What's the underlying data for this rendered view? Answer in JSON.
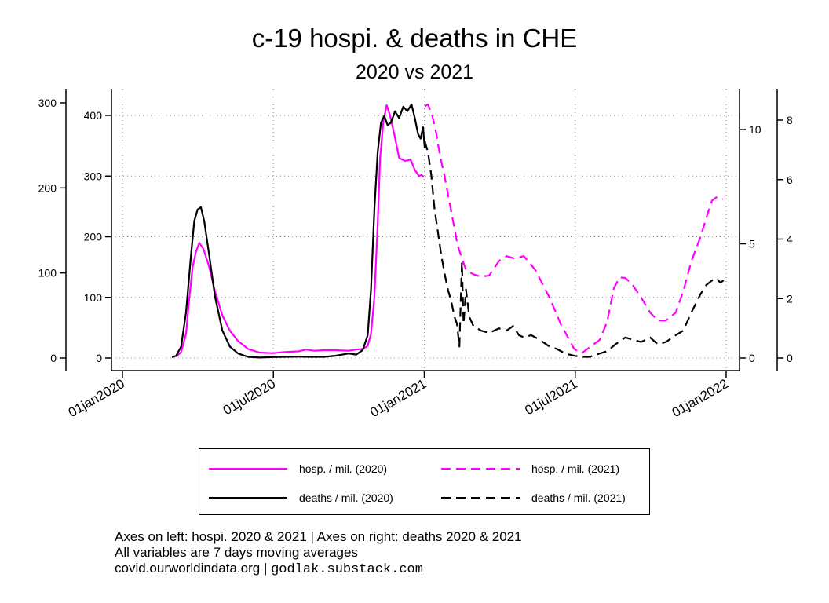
{
  "chart_data": {
    "type": "line",
    "title": "c-19 hospi. & deaths in CHE",
    "subtitle": "2020 vs 2021",
    "x_ticks": [
      "01jan2020",
      "01jul2020",
      "01jan2021",
      "01jul2021",
      "01jan2022"
    ],
    "axes": {
      "left_outer": {
        "ticks": [
          0,
          100,
          200,
          300
        ],
        "ylim": [
          0,
          320
        ]
      },
      "left_inner": {
        "ticks": [
          0,
          100,
          200,
          300,
          400
        ],
        "ylim": [
          0,
          430
        ]
      },
      "right_inner": {
        "ticks": [
          0,
          5,
          10
        ],
        "ylim": [
          0,
          11.4
        ]
      },
      "right_outer": {
        "ticks": [
          0,
          2,
          4,
          6,
          8
        ],
        "ylim": [
          0,
          8.8
        ]
      }
    },
    "grid": true,
    "legend_position": "bottom",
    "series": [
      {
        "name": "hosp. / mil. (2020)",
        "color": "#ff00ff",
        "dash": "solid",
        "axis": "left_inner",
        "x": [
          "2020-03-06",
          "2020-03-12",
          "2020-03-18",
          "2020-03-22",
          "2020-03-26",
          "2020-03-30",
          "2020-04-03",
          "2020-04-08",
          "2020-04-15",
          "2020-04-22",
          "2020-05-01",
          "2020-05-10",
          "2020-05-20",
          "2020-06-01",
          "2020-06-15",
          "2020-07-01",
          "2020-07-15",
          "2020-08-01",
          "2020-08-10",
          "2020-08-20",
          "2020-09-01",
          "2020-09-15",
          "2020-10-01",
          "2020-10-10",
          "2020-10-18",
          "2020-10-24",
          "2020-10-28",
          "2020-11-01",
          "2020-11-05",
          "2020-11-08",
          "2020-11-12",
          "2020-11-16",
          "2020-11-20",
          "2020-11-25",
          "2020-12-01",
          "2020-12-08",
          "2020-12-15",
          "2020-12-20",
          "2020-12-25",
          "2020-12-28",
          "2020-12-31"
        ],
        "values": [
          2,
          10,
          40,
          100,
          150,
          175,
          190,
          180,
          150,
          110,
          70,
          45,
          28,
          15,
          9,
          8,
          10,
          11,
          14,
          12,
          13,
          13,
          12,
          14,
          15,
          20,
          40,
          100,
          220,
          330,
          390,
          417,
          400,
          370,
          330,
          325,
          327,
          310,
          300,
          302,
          298
        ]
      },
      {
        "name": "deaths / mil. (2020)",
        "color": "#000000",
        "dash": "solid",
        "axis": "right_inner",
        "x": [
          "2020-03-01",
          "2020-03-06",
          "2020-03-12",
          "2020-03-18",
          "2020-03-24",
          "2020-03-28",
          "2020-04-01",
          "2020-04-05",
          "2020-04-09",
          "2020-04-15",
          "2020-04-22",
          "2020-05-01",
          "2020-05-10",
          "2020-05-20",
          "2020-06-01",
          "2020-06-15",
          "2020-07-01",
          "2020-07-15",
          "2020-08-01",
          "2020-08-15",
          "2020-09-01",
          "2020-09-15",
          "2020-10-01",
          "2020-10-10",
          "2020-10-18",
          "2020-10-24",
          "2020-10-28",
          "2020-11-01",
          "2020-11-05",
          "2020-11-09",
          "2020-11-13",
          "2020-11-17",
          "2020-11-21",
          "2020-11-26",
          "2020-12-01",
          "2020-12-06",
          "2020-12-11",
          "2020-12-16",
          "2020-12-20",
          "2020-12-24",
          "2020-12-27",
          "2020-12-30",
          "2021-01-01"
        ],
        "values": [
          0.03,
          0.1,
          0.5,
          2,
          4.5,
          6,
          6.5,
          6.6,
          6,
          4.5,
          2.7,
          1.2,
          0.5,
          0.2,
          0.05,
          0.02,
          0.04,
          0.05,
          0.06,
          0.05,
          0.05,
          0.1,
          0.2,
          0.15,
          0.35,
          1,
          3,
          6.5,
          9,
          10.3,
          10.6,
          10.2,
          10.3,
          10.8,
          10.5,
          11,
          10.8,
          11.1,
          10.5,
          9.8,
          9.6,
          10.1,
          9.2
        ]
      },
      {
        "name": "hosp. / mil. (2021)",
        "color": "#ff00ff",
        "dash": "dashed",
        "axis": "left_inner",
        "x": [
          "2021-01-01",
          "2021-01-05",
          "2021-01-10",
          "2021-01-15",
          "2021-01-20",
          "2021-01-25",
          "2021-02-01",
          "2021-02-10",
          "2021-02-20",
          "2021-03-01",
          "2021-03-10",
          "2021-03-20",
          "2021-04-01",
          "2021-04-10",
          "2021-04-20",
          "2021-05-01",
          "2021-05-15",
          "2021-06-01",
          "2021-06-15",
          "2021-07-01",
          "2021-07-10",
          "2021-07-20",
          "2021-08-01",
          "2021-08-10",
          "2021-08-18",
          "2021-08-25",
          "2021-09-01",
          "2021-09-10",
          "2021-09-20",
          "2021-10-01",
          "2021-10-10",
          "2021-10-20",
          "2021-11-01",
          "2021-11-10",
          "2021-11-20",
          "2021-12-01",
          "2021-12-10",
          "2021-12-15",
          "2021-12-20",
          "2021-12-25",
          "2021-12-28"
        ],
        "values": [
          415,
          418,
          400,
          370,
          330,
          300,
          250,
          185,
          145,
          138,
          134,
          136,
          160,
          168,
          164,
          168,
          145,
          100,
          55,
          15,
          8,
          18,
          30,
          60,
          115,
          133,
          132,
          120,
          100,
          75,
          62,
          62,
          75,
          110,
          160,
          200,
          240,
          260,
          265,
          262,
          262
        ]
      },
      {
        "name": "deaths / mil. (2021)",
        "color": "#000000",
        "dash": "dashed",
        "axis": "right_inner",
        "x": [
          "2021-01-01",
          "2021-01-05",
          "2021-01-09",
          "2021-01-13",
          "2021-01-17",
          "2021-01-21",
          "2021-01-25",
          "2021-01-29",
          "2021-02-02",
          "2021-02-06",
          "2021-02-09",
          "2021-02-12",
          "2021-02-15",
          "2021-02-17",
          "2021-02-20",
          "2021-02-24",
          "2021-03-01",
          "2021-03-10",
          "2021-03-20",
          "2021-04-01",
          "2021-04-10",
          "2021-04-18",
          "2021-04-25",
          "2021-05-01",
          "2021-05-10",
          "2021-05-20",
          "2021-06-01",
          "2021-06-10",
          "2021-06-20",
          "2021-07-01",
          "2021-07-10",
          "2021-07-20",
          "2021-08-01",
          "2021-08-10",
          "2021-08-20",
          "2021-09-01",
          "2021-09-10",
          "2021-09-20",
          "2021-10-01",
          "2021-10-10",
          "2021-10-20",
          "2021-11-01",
          "2021-11-10",
          "2021-11-20",
          "2021-12-01",
          "2021-12-08",
          "2021-12-15",
          "2021-12-20",
          "2021-12-25",
          "2021-12-29"
        ],
        "values": [
          9.5,
          9,
          8,
          6.5,
          5.5,
          4.5,
          3.7,
          3,
          2.5,
          1.8,
          1.5,
          0.5,
          4.2,
          1.5,
          3,
          1.8,
          1.4,
          1.2,
          1.1,
          1.3,
          1.2,
          1.4,
          1.0,
          0.9,
          1.0,
          0.8,
          0.5,
          0.4,
          0.2,
          0.1,
          0.05,
          0.05,
          0.2,
          0.3,
          0.6,
          0.9,
          0.8,
          0.7,
          0.9,
          0.6,
          0.7,
          1.0,
          1.2,
          2,
          2.8,
          3.2,
          3.4,
          3.5,
          3.3,
          3.4
        ]
      }
    ]
  },
  "notes": {
    "line1": "Axes on left: hospi. 2020 & 2021 | Axes on right: deaths 2020 & 2021",
    "line2": "All variables are 7 days moving averages",
    "line3": "covid.ourworldindata.org |",
    "credit": "godlak.substack.com"
  }
}
